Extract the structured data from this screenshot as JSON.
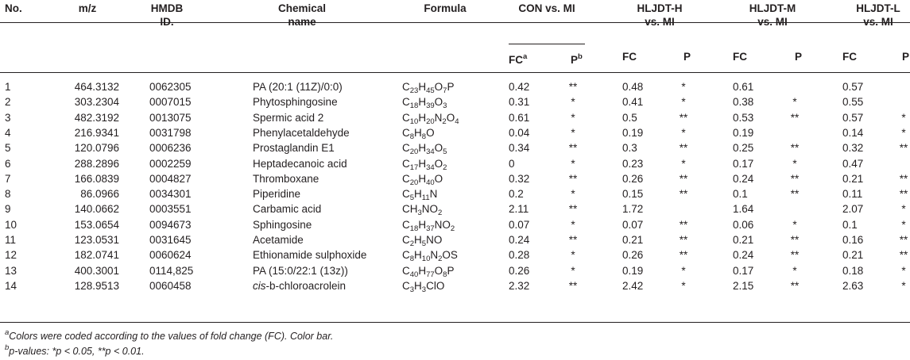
{
  "table": {
    "headers": {
      "no": "No.",
      "mz": "m/z",
      "hmdb_line1": "HMDB",
      "hmdb_line2": "ID.",
      "name_line1": "Chemical",
      "name_line2": "name",
      "formula": "Formula",
      "groups": [
        {
          "line1": "CON vs. MI",
          "line2": ""
        },
        {
          "line1": "HLJDT-H",
          "line2": "vs. MI"
        },
        {
          "line1": "HLJDT-M",
          "line2": "vs. MI"
        },
        {
          "line1": "HLJDT-L",
          "line2": "vs. MI"
        }
      ],
      "fc": "FC",
      "p": "P",
      "fc_sup": "a",
      "p_sup": "b"
    },
    "rows": [
      {
        "no": "1",
        "mz": "464.3132",
        "id": "0062305",
        "name": "PA (20:1 (11Z)/0:0)",
        "formula": [
          [
            "C",
            ""
          ],
          [
            "23",
            "s"
          ],
          [
            "H",
            ""
          ],
          [
            "45",
            "s"
          ],
          [
            "O",
            ""
          ],
          [
            "7",
            "s"
          ],
          [
            "P",
            ""
          ]
        ],
        "v": [
          "0.42",
          "**",
          "0.48",
          "*",
          "0.61",
          "",
          "0.57",
          ""
        ]
      },
      {
        "no": "2",
        "mz": "303.2304",
        "id": "0007015",
        "name": "Phytosphingosine",
        "formula": [
          [
            "C",
            ""
          ],
          [
            "18",
            "s"
          ],
          [
            "H",
            ""
          ],
          [
            "39",
            "s"
          ],
          [
            "O",
            ""
          ],
          [
            "3",
            "s"
          ]
        ],
        "v": [
          "0.31",
          "*",
          "0.41",
          "*",
          "0.38",
          "*",
          "0.55",
          ""
        ]
      },
      {
        "no": "3",
        "mz": "482.3192",
        "id": "0013075",
        "name": "Spermic acid 2",
        "formula": [
          [
            "C",
            ""
          ],
          [
            "10",
            "s"
          ],
          [
            "H",
            ""
          ],
          [
            "20",
            "s"
          ],
          [
            "N",
            ""
          ],
          [
            "2",
            "s"
          ],
          [
            "O",
            ""
          ],
          [
            "4",
            "s"
          ]
        ],
        "v": [
          "0.61",
          "*",
          "0.5",
          "**",
          "0.53",
          "**",
          "0.57",
          "*"
        ]
      },
      {
        "no": "4",
        "mz": "216.9341",
        "id": "0031798",
        "name": "Phenylacetaldehyde",
        "formula": [
          [
            "C",
            ""
          ],
          [
            "8",
            "s"
          ],
          [
            "H",
            ""
          ],
          [
            "8",
            "s"
          ],
          [
            "O",
            ""
          ]
        ],
        "v": [
          "0.04",
          "*",
          "0.19",
          "*",
          "0.19",
          "",
          "0.14",
          "*"
        ]
      },
      {
        "no": "5",
        "mz": "120.0796",
        "id": "0006236",
        "name": "Prostaglandin E1",
        "formula": [
          [
            "C",
            ""
          ],
          [
            "20",
            "s"
          ],
          [
            "H",
            ""
          ],
          [
            "34",
            "s"
          ],
          [
            "O",
            ""
          ],
          [
            "5",
            "s"
          ]
        ],
        "v": [
          "0.34",
          "**",
          "0.3",
          "**",
          "0.25",
          "**",
          "0.32",
          "**"
        ]
      },
      {
        "no": "6",
        "mz": "288.2896",
        "id": "0002259",
        "name": "Heptadecanoic acid",
        "formula": [
          [
            "C",
            ""
          ],
          [
            "17",
            "s"
          ],
          [
            "H",
            ""
          ],
          [
            "34",
            "s"
          ],
          [
            "O",
            ""
          ],
          [
            "2",
            "s"
          ]
        ],
        "v": [
          "0",
          "*",
          "0.23",
          "*",
          "0.17",
          "*",
          "0.47",
          ""
        ]
      },
      {
        "no": "7",
        "mz": "166.0839",
        "id": "0004827",
        "name": "Thromboxane",
        "formula": [
          [
            "C",
            ""
          ],
          [
            "20",
            "s"
          ],
          [
            "H",
            ""
          ],
          [
            "40",
            "s"
          ],
          [
            "O",
            ""
          ]
        ],
        "v": [
          "0.32",
          "**",
          "0.26",
          "**",
          "0.24",
          "**",
          "0.21",
          "**"
        ]
      },
      {
        "no": "8",
        "mz": "86.0966",
        "id": "0034301",
        "name": "Piperidine",
        "formula": [
          [
            "C",
            ""
          ],
          [
            "5",
            "s"
          ],
          [
            "H",
            ""
          ],
          [
            "11",
            "s"
          ],
          [
            "N",
            ""
          ]
        ],
        "v": [
          "0.2",
          "*",
          "0.15",
          "**",
          "0.1",
          "**",
          "0.11",
          "**"
        ]
      },
      {
        "no": "9",
        "mz": "140.0662",
        "id": "0003551",
        "name": "Carbamic acid",
        "formula": [
          [
            "CH",
            ""
          ],
          [
            "3",
            "s"
          ],
          [
            "NO",
            ""
          ],
          [
            "2",
            "s"
          ]
        ],
        "v": [
          "2.11",
          "**",
          "1.72",
          "",
          "1.64",
          "",
          "2.07",
          "*"
        ]
      },
      {
        "no": "10",
        "mz": "153.0654",
        "id": "0094673",
        "name": "Sphingosine",
        "formula": [
          [
            "C",
            ""
          ],
          [
            "18",
            "s"
          ],
          [
            "H",
            ""
          ],
          [
            "37",
            "s"
          ],
          [
            "NO",
            ""
          ],
          [
            "2",
            "s"
          ]
        ],
        "v": [
          "0.07",
          "*",
          "0.07",
          "**",
          "0.06",
          "*",
          "0.1",
          "*"
        ]
      },
      {
        "no": "11",
        "mz": "123.0531",
        "id": "0031645",
        "name": "Acetamide",
        "formula": [
          [
            "C",
            ""
          ],
          [
            "2",
            "s"
          ],
          [
            "H",
            ""
          ],
          [
            "5",
            "s"
          ],
          [
            "NO",
            ""
          ]
        ],
        "v": [
          "0.24",
          "**",
          "0.21",
          "**",
          "0.21",
          "**",
          "0.16",
          "**"
        ]
      },
      {
        "no": "12",
        "mz": "182.0741",
        "id": "0060624",
        "name": "Ethionamide sulphoxide",
        "formula": [
          [
            "C",
            ""
          ],
          [
            "8",
            "s"
          ],
          [
            "H",
            ""
          ],
          [
            "10",
            "s"
          ],
          [
            "N",
            ""
          ],
          [
            "2",
            "s"
          ],
          [
            "OS",
            ""
          ]
        ],
        "v": [
          "0.28",
          "*",
          "0.26",
          "**",
          "0.24",
          "**",
          "0.21",
          "**"
        ]
      },
      {
        "no": "13",
        "mz": "400.3001",
        "id": "0114,825",
        "name": "PA (15:0/22:1 (13z))",
        "formula": [
          [
            "C",
            ""
          ],
          [
            "40",
            "s"
          ],
          [
            "H",
            ""
          ],
          [
            "77",
            "s"
          ],
          [
            "O",
            ""
          ],
          [
            "8",
            "s"
          ],
          [
            "P",
            ""
          ]
        ],
        "v": [
          "0.26",
          "*",
          "0.19",
          "*",
          "0.17",
          "*",
          "0.18",
          "*"
        ]
      },
      {
        "no": "14",
        "mz": "128.9513",
        "id": "0060458",
        "name_italic": "cis",
        "name": "-b-chloroacrolein",
        "formula": [
          [
            "C",
            ""
          ],
          [
            "3",
            "s"
          ],
          [
            "H",
            ""
          ],
          [
            "3",
            "s"
          ],
          [
            "ClO",
            ""
          ]
        ],
        "v": [
          "2.32",
          "**",
          "2.42",
          "*",
          "2.15",
          "**",
          "2.63",
          "*"
        ]
      }
    ]
  },
  "footnotes": {
    "a_mark": "a",
    "a_text": "Colors were coded according to the values of fold change (FC). Color bar.",
    "b_mark": "b",
    "b_text": "p-values: *p < 0.05, **p < 0.01."
  }
}
